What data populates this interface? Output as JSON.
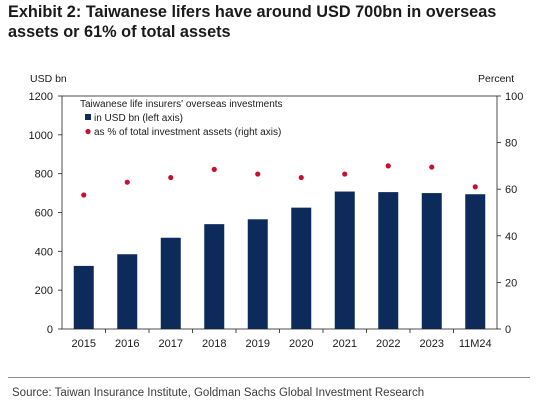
{
  "chart_data": {
    "type": "bar",
    "title": [
      "Exhibit 2: Taiwanese lifers have around USD 700bn in overseas",
      "assets or 61% of total assets"
    ],
    "categories": [
      "2015",
      "2016",
      "2017",
      "2018",
      "2019",
      "2020",
      "2021",
      "2022",
      "2023",
      "11M24"
    ],
    "series": [
      {
        "name": "in USD bn (left axis)",
        "type": "bar",
        "axis": "left",
        "color": "#0c2b5b",
        "values": [
          325,
          385,
          470,
          540,
          565,
          625,
          708,
          705,
          700,
          694
        ]
      },
      {
        "name": "as % of total investment assets (right axis)",
        "type": "scatter",
        "axis": "right",
        "color": "#c8102e",
        "values": [
          57.5,
          63,
          65,
          68.5,
          66.5,
          65,
          66.5,
          70,
          69.5,
          61
        ]
      }
    ],
    "legend": {
      "title": "Taiwanese life insurers' overseas investments",
      "position": "top-left"
    },
    "ylabel_left": "USD bn",
    "ylim_left": [
      0,
      1200
    ],
    "yticks_left": [
      0,
      200,
      400,
      600,
      800,
      1000,
      1200
    ],
    "ylabel_right": "Percent",
    "ylim_right": [
      0,
      100
    ],
    "yticks_right": [
      0,
      20,
      40,
      60,
      80,
      100
    ],
    "grid": false
  },
  "footer": {
    "source": "Source: Taiwan Insurance Institute, Goldman Sachs Global Investment Research"
  }
}
